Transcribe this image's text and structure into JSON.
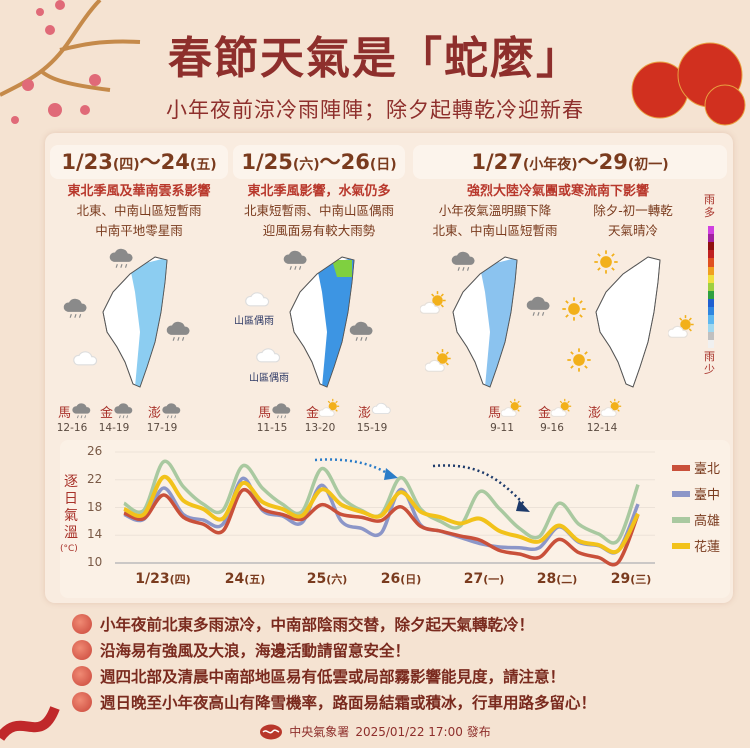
{
  "header": {
    "title": "春節天氣是「蛇麼」",
    "subtitle": "小年夜前涼冷雨陣陣；除夕起轉乾冷迎新春"
  },
  "periods": [
    {
      "date": "1/23",
      "date_day": "(四)",
      "sep": "～",
      "date2": "24",
      "date2_day": "(五)",
      "heading": "東北季風及華南雲系影響",
      "lines": [
        "北東、中南山區短暫雨",
        "中南平地零星雨"
      ],
      "islands": [
        {
          "name": "馬",
          "icon": "cloud-rain-icon",
          "temp": "12-16"
        },
        {
          "name": "金",
          "icon": "cloud-rain-icon",
          "temp": "14-19"
        },
        {
          "name": "澎",
          "icon": "cloud-rain-icon",
          "temp": "17-19"
        }
      ]
    },
    {
      "date": "1/25",
      "date_day": "(六)",
      "sep": "～",
      "date2": "26",
      "date2_day": "(日)",
      "heading": "東北季風影響，水氣仍多",
      "lines": [
        "北東短暫雨、中南山區偶雨",
        "迎風面易有較大雨勢"
      ],
      "map_labels": [
        "山區偶雨",
        "山區偶雨"
      ],
      "islands": [
        {
          "name": "馬",
          "icon": "cloud-rain-icon",
          "temp": "11-15"
        },
        {
          "name": "金",
          "icon": "sun-cloud-icon",
          "temp": "13-20"
        },
        {
          "name": "澎",
          "icon": "cloud-icon",
          "temp": "15-19"
        }
      ]
    },
    {
      "date": "1/27",
      "date_day": "(小年夜)",
      "sep": "～",
      "date2": "29",
      "date2_day": "(初一)",
      "heading": "強烈大陸冷氣團或寒流南下影響",
      "lines_left": [
        "小年夜氣溫明顯下降",
        "北東、中南山區短暫雨"
      ],
      "lines_right": [
        "除夕-初一轉乾",
        "天氣晴冷"
      ],
      "islands": [
        {
          "name": "馬",
          "icon": "sun-cloud-icon",
          "temp": "9-11"
        },
        {
          "name": "金",
          "icon": "sun-cloud-icon",
          "temp": "9-16"
        },
        {
          "name": "澎",
          "icon": "sun-cloud-icon",
          "temp": "12-14"
        }
      ]
    }
  ],
  "rain_legend": {
    "top": "雨多",
    "bottom": "雨少",
    "colors": [
      "#f0f0f0",
      "#c0c0c0",
      "#9fd8f0",
      "#5fb8f0",
      "#2f86e0",
      "#1f5fd0",
      "#2fa040",
      "#9fd040",
      "#f0e040",
      "#f0a020",
      "#e05020",
      "#c02020",
      "#901010",
      "#a020a0",
      "#d040e0"
    ]
  },
  "chart_data": {
    "type": "line",
    "ylabel": "逐日氣溫",
    "yunit": "(°C)",
    "ylim": [
      10,
      26
    ],
    "yticks": [
      10,
      14,
      18,
      22,
      26
    ],
    "grid": true,
    "legend_position": "right",
    "x_ticks": [
      {
        "d": "1/23",
        "w": "(四)"
      },
      {
        "d": "24",
        "w": "(五)"
      },
      {
        "d": "25",
        "w": "(六)"
      },
      {
        "d": "26",
        "w": "(日)"
      },
      {
        "d": "27",
        "w": "(一)"
      },
      {
        "d": "28",
        "w": "(二)"
      },
      {
        "d": "29",
        "w": "(三)"
      }
    ],
    "x": [
      "1/23 00",
      "1/23 06",
      "1/23 12",
      "1/23 18",
      "1/24 00",
      "1/24 06",
      "1/24 12",
      "1/24 18",
      "1/25 00",
      "1/25 06",
      "1/25 12",
      "1/25 18",
      "1/26 00",
      "1/26 06",
      "1/26 12",
      "1/26 18",
      "1/27 00",
      "1/27 06",
      "1/27 12",
      "1/27 18",
      "1/28 00",
      "1/28 06",
      "1/28 12",
      "1/28 18",
      "1/29 00",
      "1/29 06",
      "1/29 12"
    ],
    "series": [
      {
        "name": "臺北",
        "color": "#c9503a",
        "values": [
          17.2,
          16.4,
          19.8,
          16.6,
          15.6,
          14.6,
          20.5,
          17.8,
          17.0,
          16.3,
          18.4,
          17.0,
          16.6,
          16.1,
          18.1,
          15.3,
          14.6,
          13.9,
          13.3,
          11.8,
          11.3,
          10.8,
          13.4,
          11.5,
          10.8,
          10.1,
          17.0
        ]
      },
      {
        "name": "臺中",
        "color": "#8c96c8",
        "values": [
          17.0,
          16.3,
          20.8,
          17.0,
          16.2,
          15.6,
          22.2,
          17.6,
          16.8,
          15.8,
          21.2,
          16.0,
          15.0,
          14.3,
          20.6,
          15.5,
          14.6,
          13.7,
          12.8,
          12.3,
          12.2,
          12.2,
          15.2,
          13.0,
          12.5,
          11.8,
          18.5
        ]
      },
      {
        "name": "高雄",
        "color": "#a9c9a0",
        "values": [
          18.6,
          17.6,
          24.6,
          21.0,
          18.5,
          17.6,
          24.0,
          20.8,
          18.5,
          17.4,
          23.6,
          19.5,
          17.6,
          17.0,
          22.3,
          17.8,
          16.0,
          15.3,
          20.3,
          17.8,
          15.0,
          13.8,
          18.6,
          15.6,
          14.2,
          13.3,
          21.3
        ]
      },
      {
        "name": "花蓮",
        "color": "#f2c21a",
        "values": [
          17.8,
          17.0,
          22.4,
          19.0,
          17.8,
          16.4,
          21.5,
          18.8,
          17.8,
          16.8,
          20.6,
          18.4,
          17.4,
          16.8,
          20.2,
          17.4,
          16.6,
          15.7,
          16.4,
          14.6,
          13.8,
          13.1,
          15.4,
          13.2,
          12.6,
          11.8,
          17.1
        ]
      }
    ]
  },
  "notes": [
    "小年夜前北東多雨涼冷，中南部陰雨交替，除夕起天氣轉乾冷！",
    "沿海易有強風及大浪，海邊活動請留意安全！",
    "週四北部及清晨中南部地區易有低雲或局部霧影響能見度，請注意！",
    "週日晚至小年夜高山有降雪機率，路面易結霜或積冰，行車用路多留心！"
  ],
  "footer": {
    "agency": "中央氣象署",
    "issued": "2025/01/22 17:00 發布"
  }
}
